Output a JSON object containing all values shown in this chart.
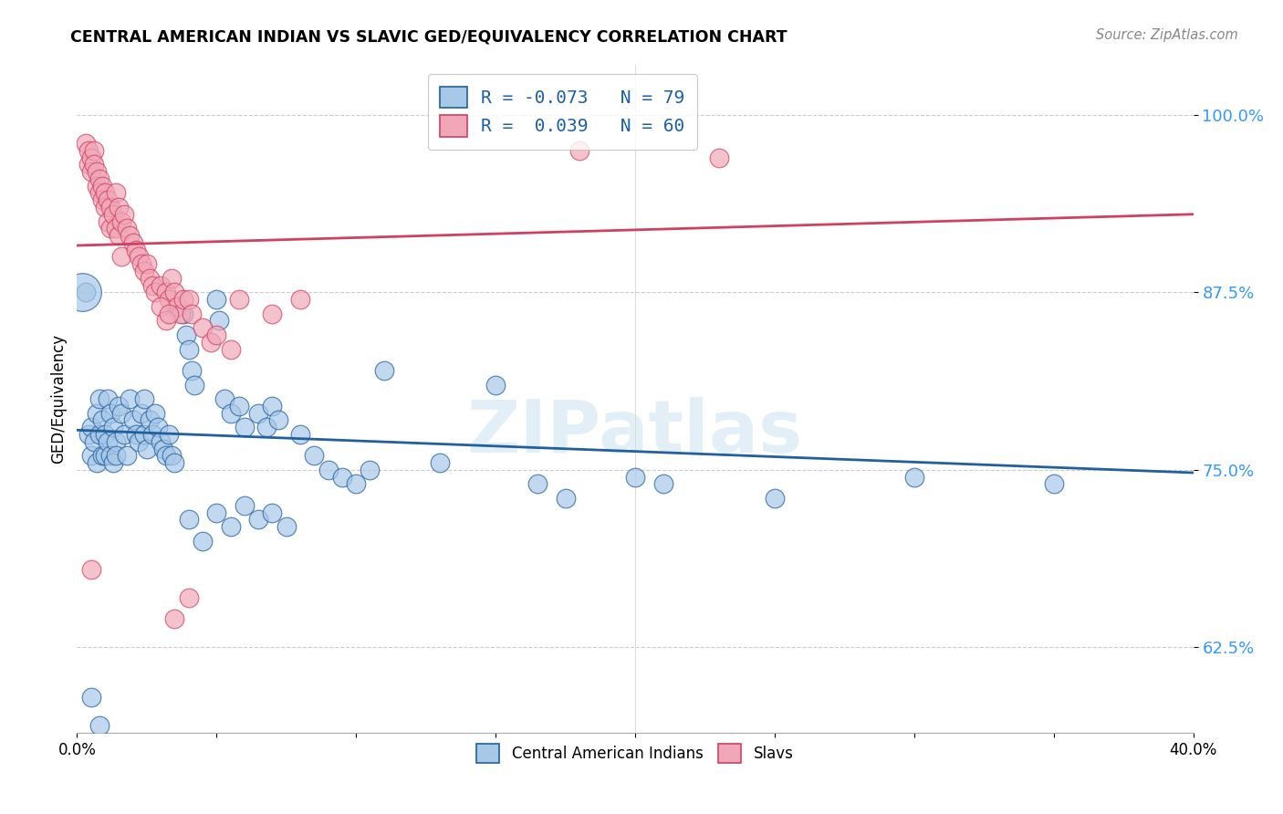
{
  "title": "CENTRAL AMERICAN INDIAN VS SLAVIC GED/EQUIVALENCY CORRELATION CHART",
  "source": "Source: ZipAtlas.com",
  "ylabel": "GED/Equivalency",
  "ytick_labels": [
    "100.0%",
    "87.5%",
    "75.0%",
    "62.5%"
  ],
  "ytick_values": [
    1.0,
    0.875,
    0.75,
    0.625
  ],
  "xmin": 0.0,
  "xmax": 0.4,
  "ymin": 0.565,
  "ymax": 1.035,
  "watermark": "ZIPatlas",
  "blue_color": "#A8C8E8",
  "pink_color": "#F0A8B8",
  "blue_line_color": "#2060A0",
  "pink_line_color": "#D04060",
  "blue_trend_y0": 0.778,
  "blue_trend_y1": 0.748,
  "pink_trend_y0": 0.908,
  "pink_trend_y1": 0.93,
  "blue_scatter": [
    [
      0.004,
      0.775
    ],
    [
      0.005,
      0.78
    ],
    [
      0.005,
      0.76
    ],
    [
      0.006,
      0.77
    ],
    [
      0.007,
      0.79
    ],
    [
      0.007,
      0.755
    ],
    [
      0.008,
      0.8
    ],
    [
      0.008,
      0.775
    ],
    [
      0.009,
      0.785
    ],
    [
      0.009,
      0.76
    ],
    [
      0.01,
      0.775
    ],
    [
      0.01,
      0.76
    ],
    [
      0.011,
      0.8
    ],
    [
      0.011,
      0.77
    ],
    [
      0.012,
      0.79
    ],
    [
      0.012,
      0.76
    ],
    [
      0.013,
      0.78
    ],
    [
      0.013,
      0.755
    ],
    [
      0.014,
      0.77
    ],
    [
      0.014,
      0.76
    ],
    [
      0.015,
      0.795
    ],
    [
      0.016,
      0.79
    ],
    [
      0.017,
      0.775
    ],
    [
      0.018,
      0.76
    ],
    [
      0.019,
      0.8
    ],
    [
      0.02,
      0.785
    ],
    [
      0.021,
      0.775
    ],
    [
      0.022,
      0.77
    ],
    [
      0.023,
      0.79
    ],
    [
      0.024,
      0.8
    ],
    [
      0.024,
      0.775
    ],
    [
      0.025,
      0.765
    ],
    [
      0.026,
      0.785
    ],
    [
      0.027,
      0.775
    ],
    [
      0.028,
      0.79
    ],
    [
      0.029,
      0.78
    ],
    [
      0.03,
      0.77
    ],
    [
      0.031,
      0.765
    ],
    [
      0.032,
      0.76
    ],
    [
      0.033,
      0.775
    ],
    [
      0.034,
      0.76
    ],
    [
      0.035,
      0.755
    ],
    [
      0.038,
      0.86
    ],
    [
      0.039,
      0.845
    ],
    [
      0.04,
      0.835
    ],
    [
      0.041,
      0.82
    ],
    [
      0.042,
      0.81
    ],
    [
      0.05,
      0.87
    ],
    [
      0.051,
      0.855
    ],
    [
      0.053,
      0.8
    ],
    [
      0.055,
      0.79
    ],
    [
      0.058,
      0.795
    ],
    [
      0.06,
      0.78
    ],
    [
      0.065,
      0.79
    ],
    [
      0.068,
      0.78
    ],
    [
      0.07,
      0.795
    ],
    [
      0.072,
      0.785
    ],
    [
      0.08,
      0.775
    ],
    [
      0.085,
      0.76
    ],
    [
      0.09,
      0.75
    ],
    [
      0.095,
      0.745
    ],
    [
      0.1,
      0.74
    ],
    [
      0.105,
      0.75
    ],
    [
      0.04,
      0.715
    ],
    [
      0.045,
      0.7
    ],
    [
      0.05,
      0.72
    ],
    [
      0.055,
      0.71
    ],
    [
      0.06,
      0.725
    ],
    [
      0.065,
      0.715
    ],
    [
      0.07,
      0.72
    ],
    [
      0.075,
      0.71
    ],
    [
      0.11,
      0.82
    ],
    [
      0.13,
      0.755
    ],
    [
      0.15,
      0.81
    ],
    [
      0.165,
      0.74
    ],
    [
      0.175,
      0.73
    ],
    [
      0.2,
      0.745
    ],
    [
      0.21,
      0.74
    ],
    [
      0.25,
      0.73
    ],
    [
      0.3,
      0.745
    ],
    [
      0.35,
      0.74
    ],
    [
      0.003,
      0.875
    ],
    [
      0.005,
      0.59
    ],
    [
      0.008,
      0.57
    ]
  ],
  "pink_scatter": [
    [
      0.003,
      0.98
    ],
    [
      0.004,
      0.975
    ],
    [
      0.004,
      0.965
    ],
    [
      0.005,
      0.97
    ],
    [
      0.005,
      0.96
    ],
    [
      0.006,
      0.975
    ],
    [
      0.006,
      0.965
    ],
    [
      0.007,
      0.96
    ],
    [
      0.007,
      0.95
    ],
    [
      0.008,
      0.955
    ],
    [
      0.008,
      0.945
    ],
    [
      0.009,
      0.95
    ],
    [
      0.009,
      0.94
    ],
    [
      0.01,
      0.945
    ],
    [
      0.01,
      0.935
    ],
    [
      0.011,
      0.94
    ],
    [
      0.011,
      0.925
    ],
    [
      0.012,
      0.935
    ],
    [
      0.012,
      0.92
    ],
    [
      0.013,
      0.93
    ],
    [
      0.014,
      0.945
    ],
    [
      0.014,
      0.92
    ],
    [
      0.015,
      0.935
    ],
    [
      0.015,
      0.915
    ],
    [
      0.016,
      0.925
    ],
    [
      0.016,
      0.9
    ],
    [
      0.017,
      0.93
    ],
    [
      0.018,
      0.92
    ],
    [
      0.019,
      0.915
    ],
    [
      0.02,
      0.91
    ],
    [
      0.021,
      0.905
    ],
    [
      0.022,
      0.9
    ],
    [
      0.023,
      0.895
    ],
    [
      0.024,
      0.89
    ],
    [
      0.025,
      0.895
    ],
    [
      0.026,
      0.885
    ],
    [
      0.027,
      0.88
    ],
    [
      0.028,
      0.875
    ],
    [
      0.03,
      0.88
    ],
    [
      0.032,
      0.875
    ],
    [
      0.033,
      0.87
    ],
    [
      0.034,
      0.885
    ],
    [
      0.035,
      0.875
    ],
    [
      0.036,
      0.865
    ],
    [
      0.037,
      0.86
    ],
    [
      0.038,
      0.87
    ],
    [
      0.03,
      0.865
    ],
    [
      0.032,
      0.855
    ],
    [
      0.033,
      0.86
    ],
    [
      0.04,
      0.87
    ],
    [
      0.041,
      0.86
    ],
    [
      0.045,
      0.85
    ],
    [
      0.048,
      0.84
    ],
    [
      0.05,
      0.845
    ],
    [
      0.055,
      0.835
    ],
    [
      0.058,
      0.87
    ],
    [
      0.07,
      0.86
    ],
    [
      0.08,
      0.87
    ],
    [
      0.18,
      0.975
    ],
    [
      0.23,
      0.97
    ],
    [
      0.005,
      0.68
    ],
    [
      0.04,
      0.66
    ],
    [
      0.035,
      0.645
    ]
  ]
}
